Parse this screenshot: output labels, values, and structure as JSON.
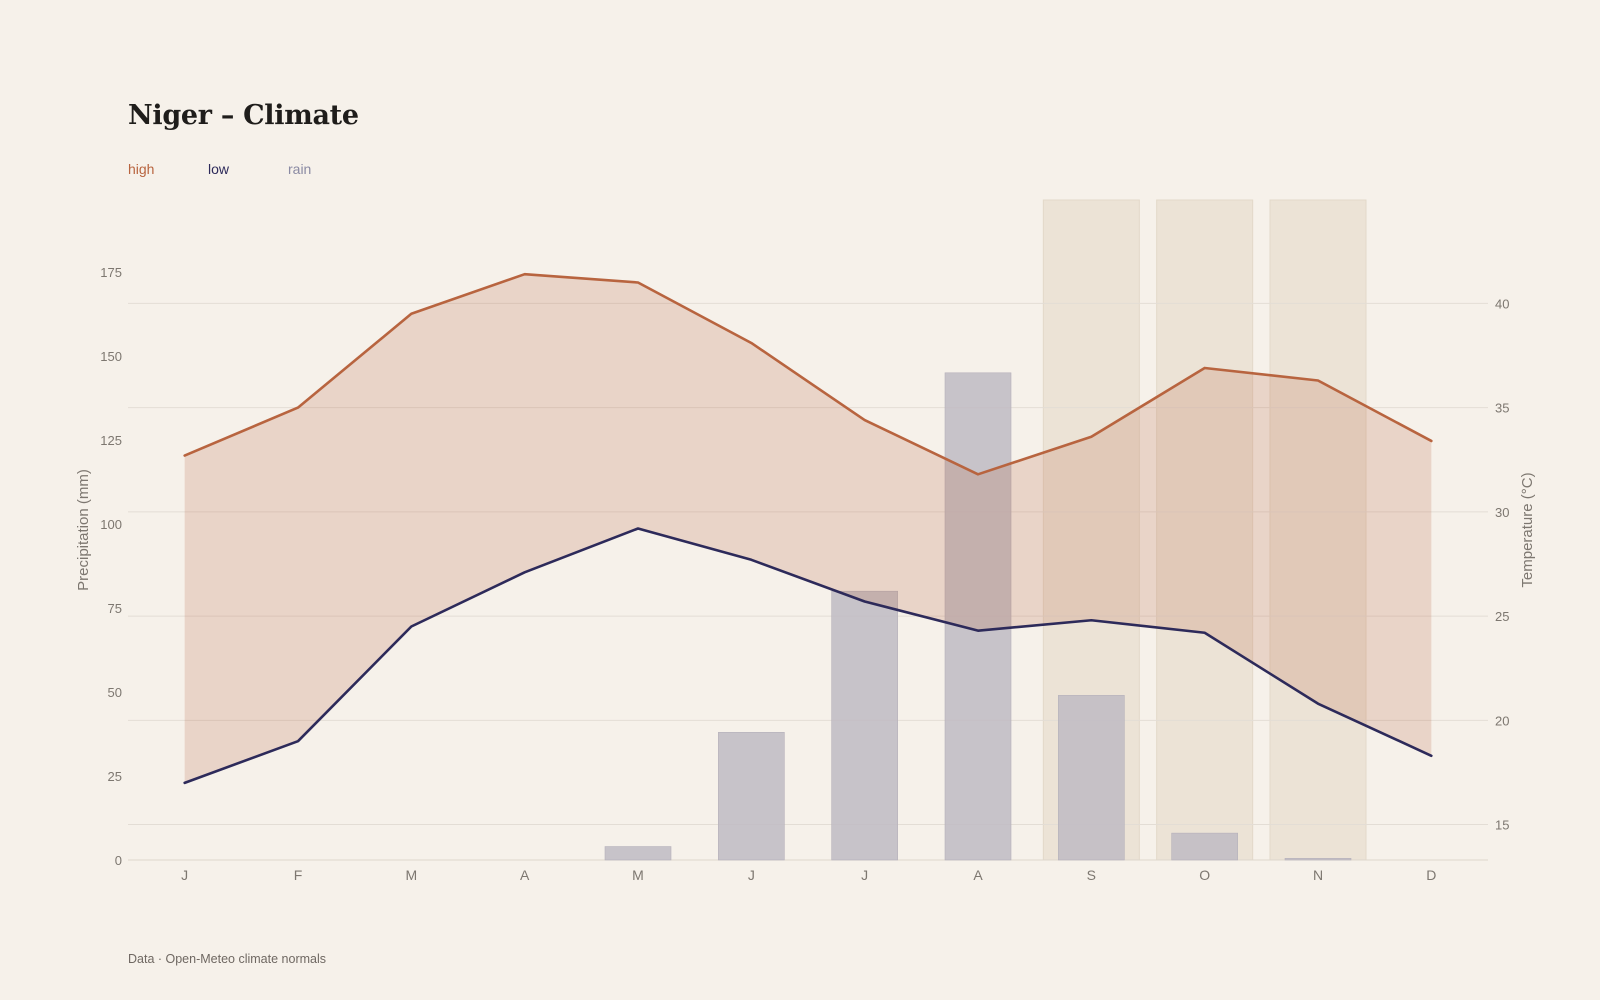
{
  "title": "Niger – Climate",
  "legend": [
    {
      "label": "high",
      "color": "#b8643f"
    },
    {
      "label": "low",
      "color": "#2d2a5a"
    },
    {
      "label": "rain",
      "color": "#8a8aa3"
    }
  ],
  "source": "Data · Open-Meteo climate normals",
  "colors": {
    "high": "#b8643f",
    "low": "#2d2a5a",
    "rain_bar": "#c0bcc4",
    "range_fill": "#e9d5ca",
    "highlight_band": "#ece3d6",
    "grid": "#e3ddd5",
    "tick_text": "#7d7770",
    "background": "#f6f1ea"
  },
  "chart_data": {
    "type": "line+bar",
    "categories": [
      "J",
      "F",
      "M",
      "A",
      "M",
      "J",
      "J",
      "A",
      "S",
      "O",
      "N",
      "D"
    ],
    "y_left": {
      "label": "Precipitation (mm)",
      "range": [
        0,
        175
      ],
      "ticks": [
        0,
        25,
        50,
        75,
        100,
        125,
        150,
        175
      ]
    },
    "y_right": {
      "label": "Temperature (°C)",
      "range": [
        13.3,
        41.6
      ],
      "ticks": [
        15,
        20,
        25,
        30,
        35,
        40
      ]
    },
    "highlighted_months": [
      8,
      9,
      10
    ],
    "series": [
      {
        "name": "high",
        "axis": "right",
        "type": "line",
        "values": [
          32.7,
          35.0,
          39.5,
          41.4,
          41.0,
          38.1,
          34.4,
          31.8,
          33.6,
          36.9,
          36.3,
          33.4
        ]
      },
      {
        "name": "low",
        "axis": "right",
        "type": "line",
        "values": [
          17.0,
          19.0,
          24.5,
          27.1,
          29.2,
          27.7,
          25.7,
          24.3,
          24.8,
          24.2,
          20.8,
          18.3
        ]
      },
      {
        "name": "rain",
        "axis": "left",
        "type": "bar",
        "values": [
          0,
          0,
          0,
          0,
          4,
          38,
          80,
          145,
          49,
          8,
          0.5,
          0
        ]
      }
    ],
    "grid": true,
    "legend_position": "top-left"
  }
}
